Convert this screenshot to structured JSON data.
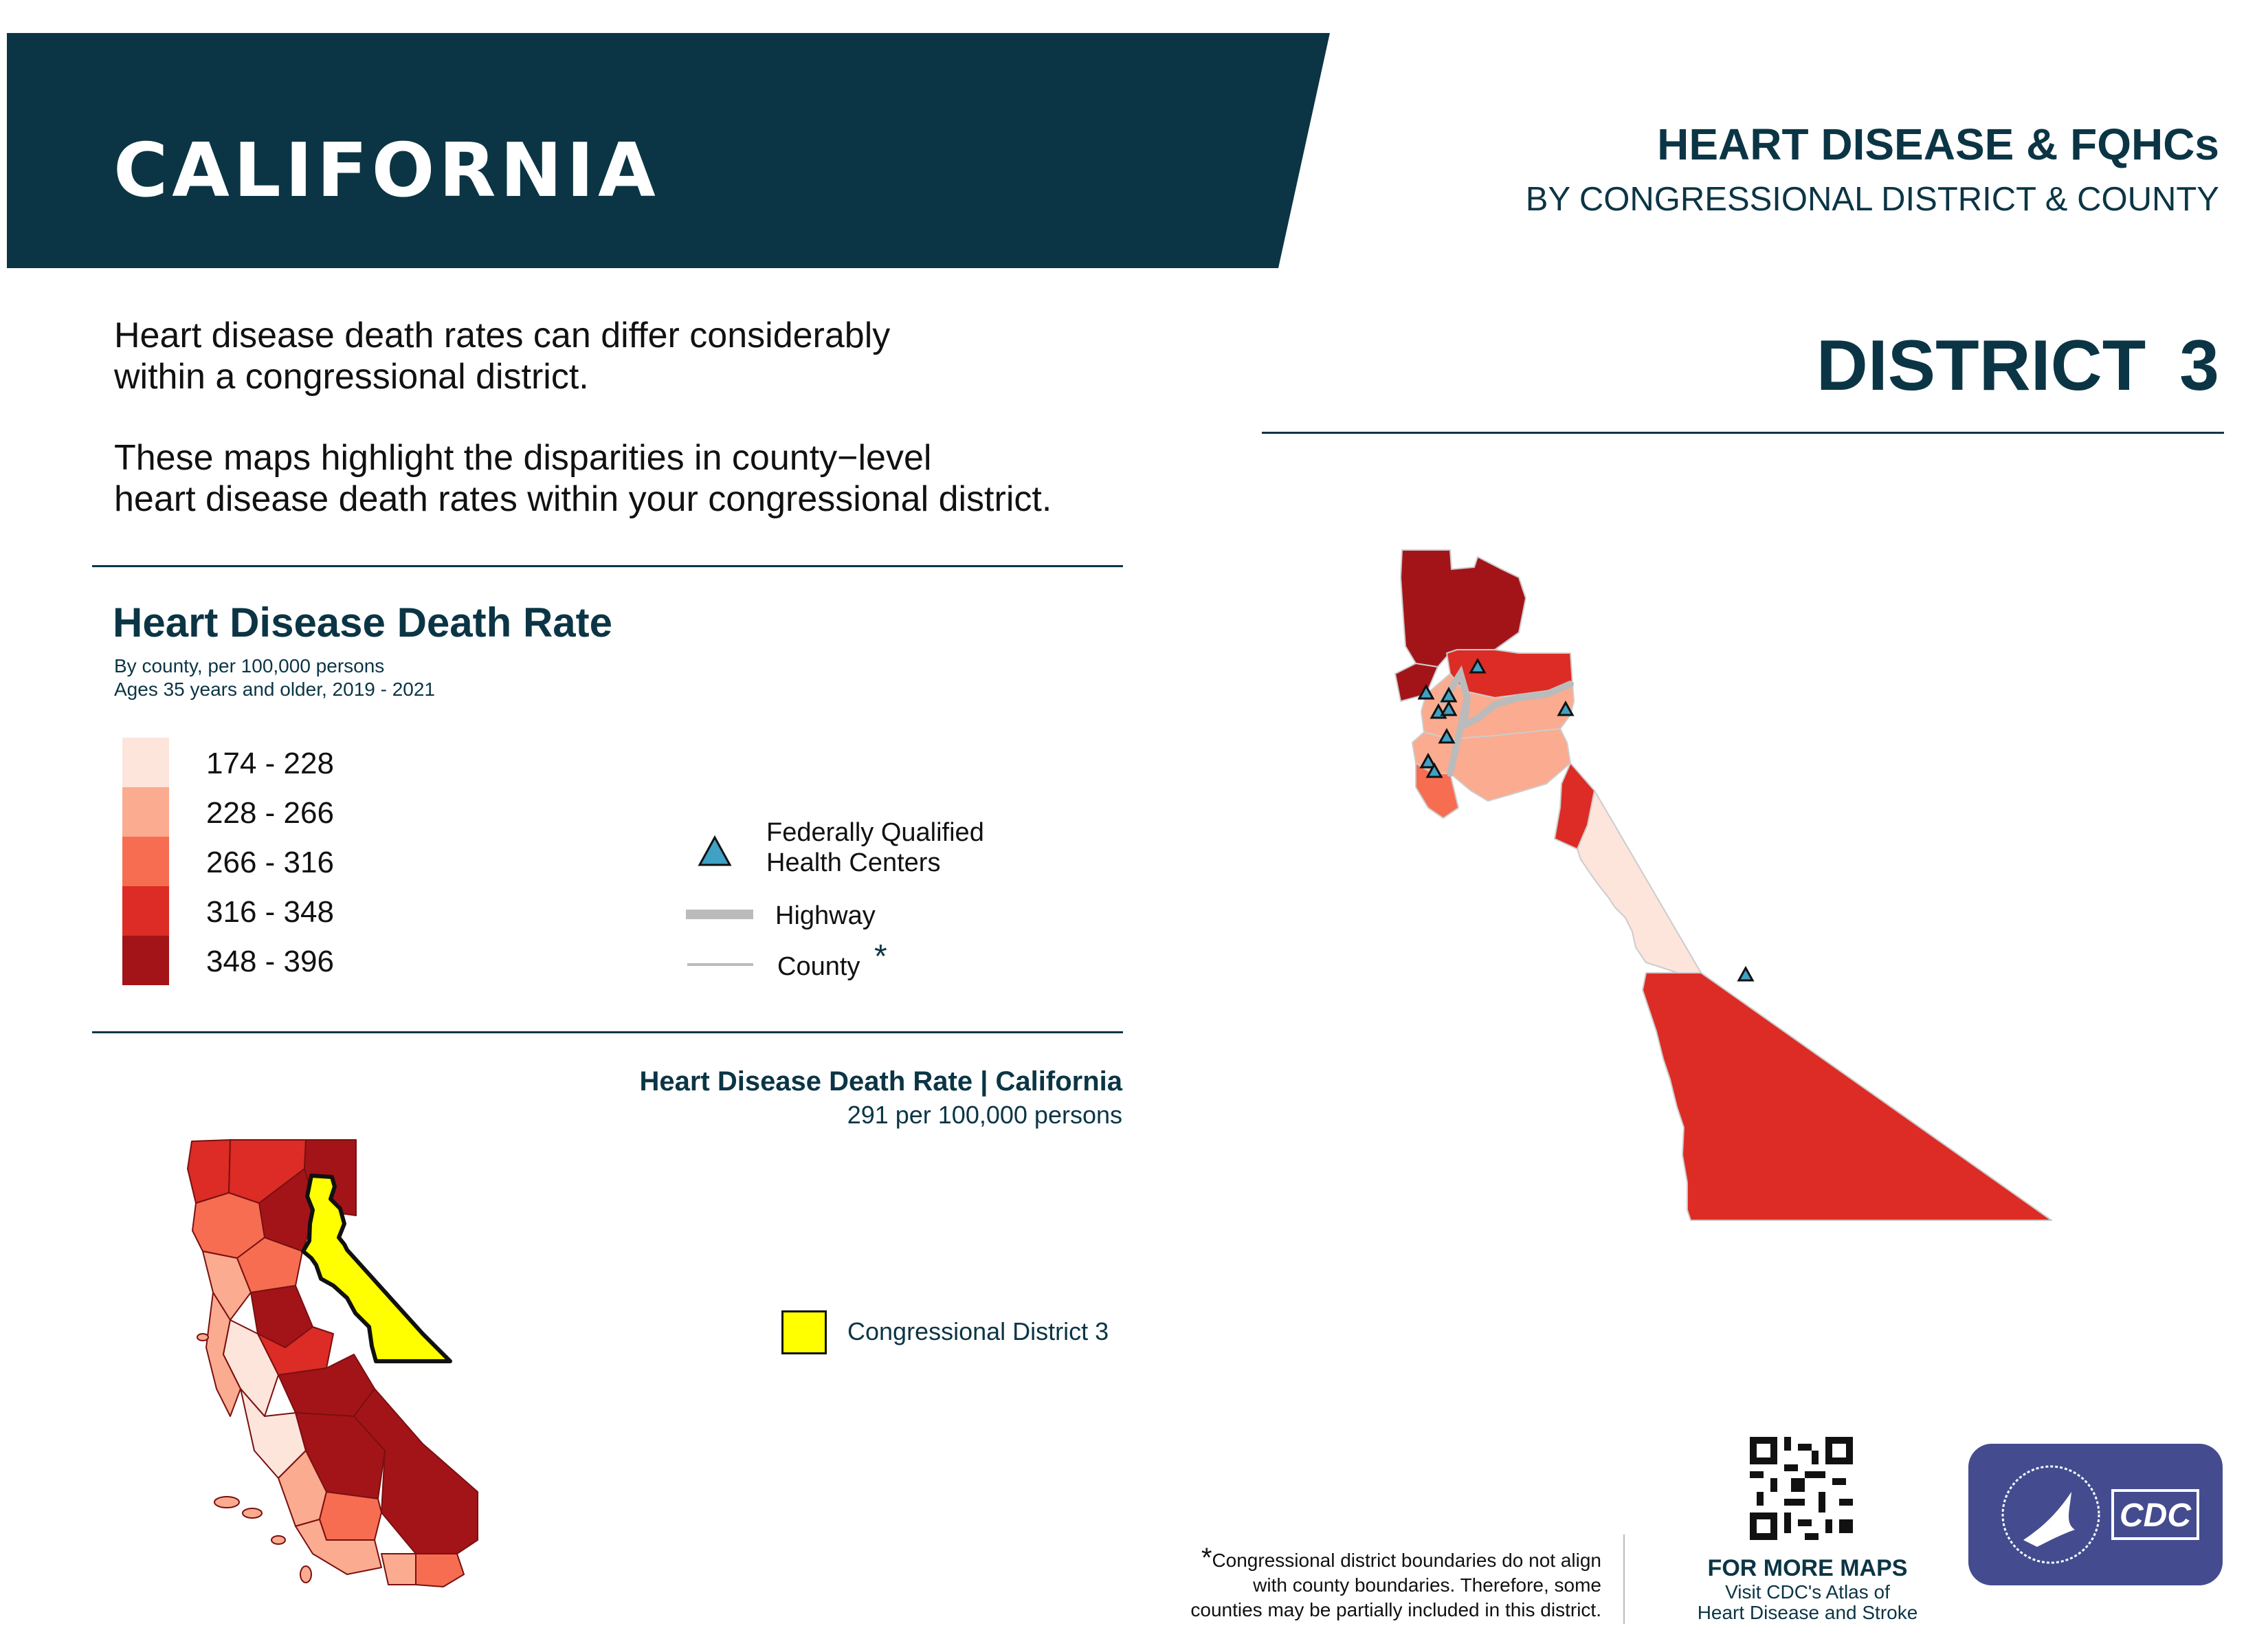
{
  "header": {
    "state": "CALIFORNIA",
    "title": "HEART DISEASE & FQHCs",
    "subtitle": "BY CONGRESSIONAL DISTRICT & COUNTY",
    "district": "DISTRICT  3",
    "banner_color": "#0b3545"
  },
  "intro": {
    "line1": "Heart disease death rates can differ considerably",
    "line2": "within a congressional district.",
    "line3": "These maps highlight the disparities in county−level",
    "line4": "heart disease death rates within your congressional district."
  },
  "legend": {
    "title": "Heart Disease Death Rate",
    "subtitle1": "By county, per 100,000 persons",
    "subtitle2": "Ages 35 years and older, 2019 - 2021",
    "bins": [
      {
        "label": "174 - 228",
        "color": "#fde5dc"
      },
      {
        "label": "228 - 266",
        "color": "#fbab8f"
      },
      {
        "label": "266 - 316",
        "color": "#f66d52"
      },
      {
        "label": "316 - 348",
        "color": "#dc2c25"
      },
      {
        "label": "348 - 396",
        "color": "#a31419"
      }
    ],
    "fqhc_label_1": "Federally Qualified",
    "fqhc_label_2": "Health Centers",
    "fqhc_color": "#3fa2c4",
    "highway_label": "Highway",
    "county_label": "County",
    "county_asterisk": "*",
    "line_color": "#bbbbbb"
  },
  "state_rate": {
    "title": "Heart Disease Death Rate | California",
    "value": "291 per 100,000 persons"
  },
  "district_legend": {
    "label": "Congressional District 3",
    "color": "#ffff00"
  },
  "footer": {
    "footnote_star": "*",
    "footnote1": "Congressional district boundaries do not align",
    "footnote2": "with county boundaries. Therefore, some",
    "footnote3": "counties may be partially included in this district.",
    "more_maps_title": "FOR MORE MAPS",
    "more_maps_line1": "Visit CDC's Atlas of",
    "more_maps_line2": "Heart Disease and Stroke",
    "badge_text": "CDC",
    "badge_color": "#444c8f"
  }
}
